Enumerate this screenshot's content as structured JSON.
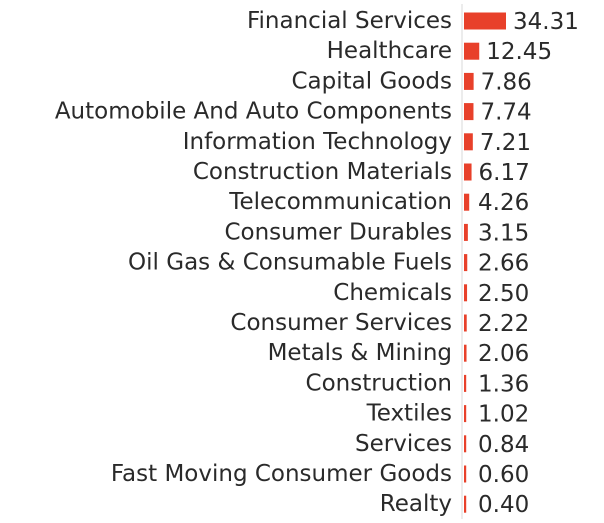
{
  "chart_data": {
    "type": "bar",
    "orientation": "horizontal",
    "title": "",
    "xlabel": "",
    "ylabel": "",
    "categories": [
      "Financial Services",
      "Healthcare",
      "Capital Goods",
      "Automobile And Auto Components",
      "Information Technology",
      "Construction Materials",
      "Telecommunication",
      "Consumer Durables",
      "Oil Gas & Consumable Fuels",
      "Chemicals",
      "Consumer Services",
      "Metals & Mining",
      "Construction",
      "Textiles",
      "Services",
      "Fast Moving Consumer Goods",
      "Realty"
    ],
    "values": [
      34.31,
      12.45,
      7.86,
      7.74,
      7.21,
      6.17,
      4.26,
      3.15,
      2.66,
      2.5,
      2.22,
      2.06,
      1.36,
      1.02,
      0.84,
      0.6,
      0.4
    ],
    "value_labels": [
      "34.31",
      "12.45",
      "7.86",
      "7.74",
      "7.21",
      "6.17",
      "4.26",
      "3.15",
      "2.66",
      "2.50",
      "2.22",
      "2.06",
      "1.36",
      "1.02",
      "0.84",
      "0.60",
      "0.40"
    ],
    "bar_color": "#e8402a",
    "axis_color": "#d9d9d9",
    "grid": false,
    "legend": "none"
  }
}
